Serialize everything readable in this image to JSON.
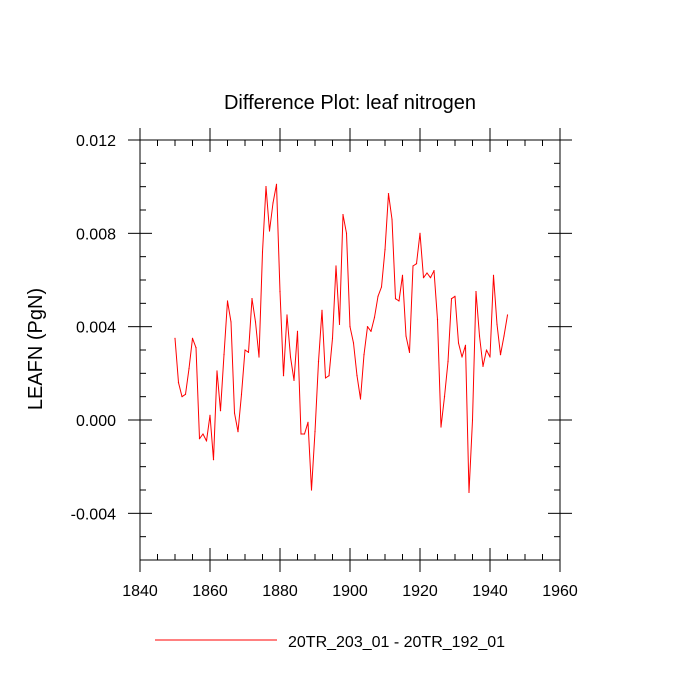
{
  "chart_data": {
    "type": "line",
    "title": "Difference Plot: leaf nitrogen",
    "xlabel": "",
    "ylabel": "LEAFN  (PgN)",
    "xlim": [
      1840,
      1960
    ],
    "ylim": [
      -0.006,
      0.012
    ],
    "x_ticks": [
      1840,
      1860,
      1880,
      1900,
      1920,
      1940,
      1960
    ],
    "x_tick_labels": [
      "1840",
      "1860",
      "1880",
      "1900",
      "1920",
      "1940",
      "1960"
    ],
    "y_ticks": [
      -0.004,
      0.0,
      0.004,
      0.008,
      0.012
    ],
    "y_tick_labels": [
      "-0.004",
      "0.000",
      "0.004",
      "0.008",
      "0.012"
    ],
    "grid": false,
    "legend_position": "bottom-center",
    "series": [
      {
        "name": "20TR_203_01 - 20TR_192_01",
        "color": "#ff0000",
        "x": [
          1850,
          1851,
          1852,
          1853,
          1854,
          1855,
          1856,
          1857,
          1858,
          1859,
          1860,
          1861,
          1862,
          1863,
          1864,
          1865,
          1866,
          1867,
          1868,
          1869,
          1870,
          1871,
          1872,
          1873,
          1874,
          1875,
          1876,
          1877,
          1878,
          1879,
          1880,
          1881,
          1882,
          1883,
          1884,
          1885,
          1886,
          1887,
          1888,
          1889,
          1890,
          1891,
          1892,
          1893,
          1894,
          1895,
          1896,
          1897,
          1898,
          1899,
          1900,
          1901,
          1902,
          1903,
          1904,
          1905,
          1906,
          1907,
          1908,
          1909,
          1910,
          1911,
          1912,
          1913,
          1914,
          1915,
          1916,
          1917,
          1918,
          1919,
          1920,
          1921,
          1922,
          1923,
          1924,
          1925,
          1926,
          1927,
          1928,
          1929,
          1930,
          1931,
          1932,
          1933,
          1934,
          1935,
          1936,
          1937,
          1938,
          1939,
          1940,
          1941,
          1942,
          1943,
          1944,
          1945
        ],
        "values": [
          0.0035,
          0.0016,
          0.001,
          0.0011,
          0.0022,
          0.0035,
          0.0031,
          -0.0008,
          -0.0006,
          -0.0009,
          0.0002,
          -0.0017,
          0.0021,
          0.0004,
          0.0028,
          0.0051,
          0.0042,
          0.0003,
          -0.0005,
          0.0011,
          0.003,
          0.0029,
          0.0052,
          0.0042,
          0.0027,
          0.0072,
          0.01,
          0.0081,
          0.0093,
          0.0101,
          0.0055,
          0.0019,
          0.0045,
          0.0027,
          0.0017,
          0.0038,
          -0.0006,
          -0.0006,
          -0.0001,
          -0.003,
          -0.0005,
          0.0025,
          0.0047,
          0.0018,
          0.0019,
          0.0035,
          0.0066,
          0.0041,
          0.0088,
          0.008,
          0.004,
          0.0033,
          0.0019,
          0.0009,
          0.0028,
          0.004,
          0.0038,
          0.0044,
          0.0053,
          0.0057,
          0.0073,
          0.0097,
          0.0086,
          0.0052,
          0.0051,
          0.0062,
          0.0036,
          0.0029,
          0.0066,
          0.0067,
          0.008,
          0.0061,
          0.0063,
          0.0061,
          0.0064,
          0.0043,
          -0.0003,
          0.001,
          0.0025,
          0.0052,
          0.0053,
          0.0033,
          0.0027,
          0.0032,
          -0.0031,
          0.0,
          0.0055,
          0.0036,
          0.0023,
          0.003,
          0.0027,
          0.0062,
          0.0041,
          0.0028,
          0.0036,
          0.0045
        ]
      }
    ]
  }
}
